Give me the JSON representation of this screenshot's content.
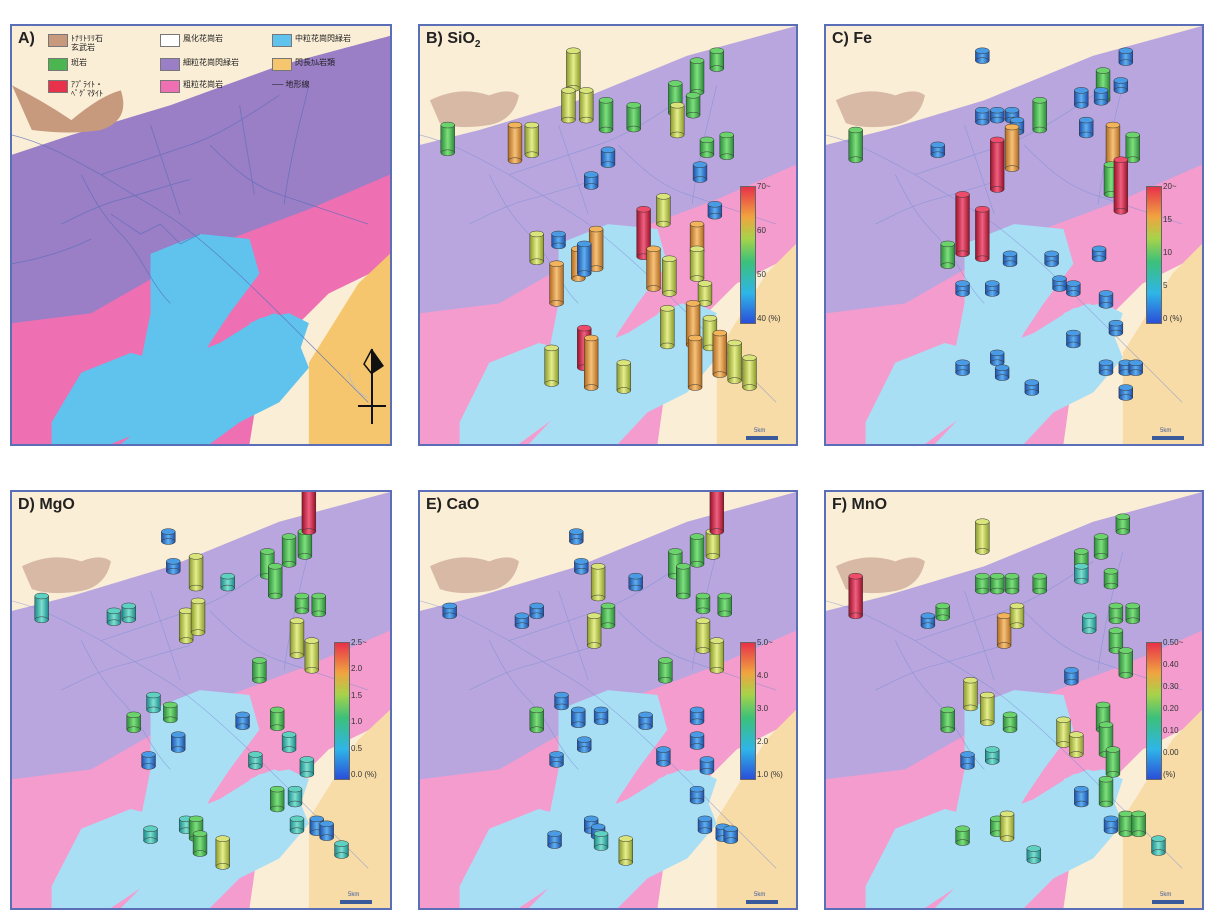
{
  "colors": {
    "cream": "#fbeed6",
    "purple": "#9a7ec6",
    "pink": "#ee6fb2",
    "blue": "#5fc3ee",
    "orange": "#f5c66d",
    "brown": "#c79a7e",
    "green": "#4bb64f",
    "red": "#e8314a",
    "frame": "#5a6fb8"
  },
  "panel_a": {
    "label": "A)",
    "legend": [
      {
        "color": "#c79a7e",
        "text": "ﾄﾅﾘﾄﾘﾘ石\n玄武岩"
      },
      {
        "color": "#ffffff",
        "text": "風化花崗岩"
      },
      {
        "color": "#5fc3ee",
        "text": "中粒花崗閃緑岩"
      },
      {
        "color": "#4bb64f",
        "text": "斑岩"
      },
      {
        "color": "#9a7ec6",
        "text": "細粒花崗閃緑岩"
      },
      {
        "color": "#f5c66d",
        "text": "閃長ｶﾑ岩類"
      },
      {
        "color": "#e8314a",
        "text": "ｱﾌﾟﾗｲﾄ・\nﾍﾟｸﾞﾏﾀｲﾄ"
      },
      {
        "color": "#ee6fb2",
        "text": "粗粒花崗岩"
      },
      {
        "color": "#5a6fb8",
        "text": "── 地形線"
      }
    ],
    "scale_label": "5km",
    "north_icon": "north-arrow-icon"
  },
  "panels": [
    {
      "id": "B",
      "label": "B) SiO",
      "sub": "2",
      "ticks": [
        "70~",
        "60",
        "50",
        "40 (%)"
      ]
    },
    {
      "id": "C",
      "label": "C) Fe",
      "sub": "",
      "ticks": [
        "20~",
        "15",
        "10",
        "5",
        "0 (%)"
      ]
    },
    {
      "id": "D",
      "label": "D) MgO",
      "sub": "",
      "ticks": [
        "2.5~",
        "2.0",
        "1.5",
        "1.0",
        "0.5",
        "0.0 (%)"
      ]
    },
    {
      "id": "E",
      "label": "E) CaO",
      "sub": "",
      "ticks": [
        "5.0~",
        "4.0",
        "3.0",
        "2.0",
        "1.0 (%)"
      ]
    },
    {
      "id": "F",
      "label": "F) MnO",
      "sub": "",
      "ticks": [
        "0.50~",
        "0.40",
        "0.30",
        "0.20",
        "0.10",
        "0.00",
        "(%)"
      ]
    }
  ],
  "scale_label": "5km"
}
